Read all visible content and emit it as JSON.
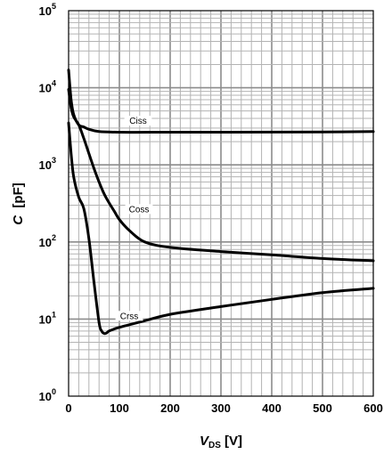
{
  "chart_data": {
    "type": "line",
    "title": "",
    "xlabel": {
      "main": "V",
      "sub": "DS",
      "unit": " [V]"
    },
    "ylabel": {
      "main": "C",
      "unit": "  [pF]"
    },
    "x_range": [
      0,
      600
    ],
    "y_range": [
      1,
      100000
    ],
    "y_scale": "log",
    "grid": true,
    "x_ticks": [
      "0",
      "100",
      "200",
      "300",
      "400",
      "500",
      "600"
    ],
    "y_ticks": [
      {
        "base": "10",
        "exp": "0"
      },
      {
        "base": "10",
        "exp": "1"
      },
      {
        "base": "10",
        "exp": "2"
      },
      {
        "base": "10",
        "exp": "3"
      },
      {
        "base": "10",
        "exp": "4"
      },
      {
        "base": "10",
        "exp": "5"
      }
    ],
    "series": [
      {
        "name": "Ciss",
        "x": [
          0,
          5,
          10,
          20,
          30,
          40,
          60,
          100,
          200,
          300,
          400,
          500,
          600
        ],
        "y": [
          17000,
          7000,
          4500,
          3300,
          3100,
          2900,
          2700,
          2650,
          2650,
          2650,
          2660,
          2670,
          2700
        ]
      },
      {
        "name": "Coss",
        "x": [
          0,
          5,
          10,
          20,
          30,
          40,
          50,
          60,
          70,
          80,
          90,
          100,
          120,
          150,
          200,
          300,
          400,
          500,
          600
        ],
        "y": [
          9500,
          5500,
          4200,
          3300,
          2200,
          1400,
          900,
          600,
          420,
          320,
          250,
          195,
          140,
          100,
          85,
          75,
          68,
          61,
          57
        ]
      },
      {
        "name": "Crss",
        "x": [
          0,
          5,
          10,
          20,
          30,
          40,
          50,
          60,
          65,
          70,
          75,
          80,
          100,
          150,
          200,
          300,
          400,
          500,
          600
        ],
        "y": [
          3500,
          1400,
          700,
          380,
          270,
          110,
          30,
          9,
          7,
          6.5,
          6.6,
          7,
          7.8,
          9.5,
          11.5,
          14.5,
          18,
          22,
          25
        ]
      }
    ]
  }
}
